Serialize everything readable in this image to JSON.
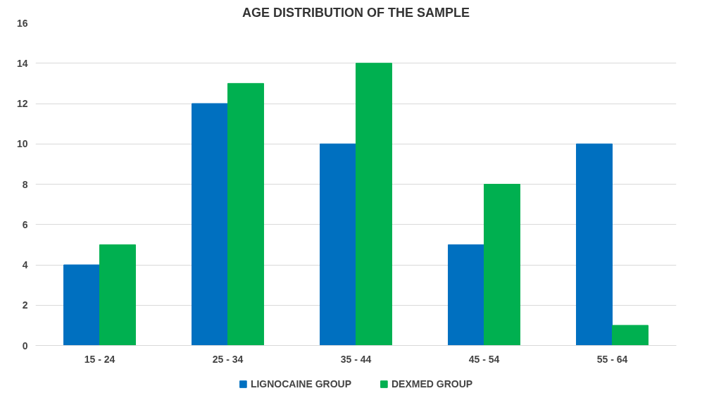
{
  "chart_data": {
    "type": "bar",
    "title": "AGE DISTRIBUTION OF THE SAMPLE",
    "categories": [
      "15 - 24",
      "25 - 34",
      "35 - 44",
      "45 - 54",
      "55 - 64"
    ],
    "series": [
      {
        "name": "LIGNOCAINE GROUP",
        "color": "#0070c0",
        "values": [
          4,
          12,
          10,
          5,
          10
        ]
      },
      {
        "name": "DEXMED GROUP",
        "color": "#00b050",
        "values": [
          5,
          13,
          14,
          8,
          1
        ]
      }
    ],
    "ylim": [
      0,
      16
    ],
    "yticks": [
      0,
      2,
      4,
      6,
      8,
      10,
      12,
      14,
      16
    ],
    "grid": "y",
    "legend": "bottom"
  }
}
